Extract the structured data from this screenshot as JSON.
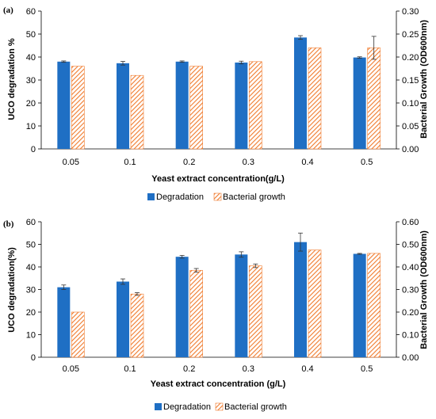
{
  "chart_data": [
    {
      "type": "bar",
      "panel_label": "(a)",
      "categories": [
        "0.05",
        "0.1",
        "0.2",
        "0.3",
        "0.4",
        "0.5"
      ],
      "xlabel": "Yeast extract concentration(g/L)",
      "ylabel": "UCO degradation %",
      "y2label": "Bacterial Growth (OD600nm)",
      "ylim": [
        0,
        60
      ],
      "yticks": [
        "0",
        "10",
        "20",
        "30",
        "40",
        "50",
        "60"
      ],
      "y2lim": [
        0,
        0.3
      ],
      "y2ticks": [
        "0.00",
        "0.05",
        "0.10",
        "0.15",
        "0.20",
        "0.25",
        "0.30"
      ],
      "grid": false,
      "legend_position": "bottom",
      "series": [
        {
          "name": "Degradation",
          "axis": "left",
          "color": "#1f6fc4",
          "values": [
            38,
            37.3,
            38,
            37.6,
            48.5,
            39.8
          ],
          "errors": [
            0.3,
            0.8,
            0.3,
            0.6,
            0.8,
            0.3
          ]
        },
        {
          "name": "Bacterial growth",
          "axis": "right",
          "color": "#f07b2d",
          "pattern": "hatched",
          "values": [
            0.18,
            0.16,
            0.18,
            0.19,
            0.22,
            0.22
          ],
          "errors": [
            0,
            0,
            0,
            0,
            0,
            0.025
          ]
        }
      ]
    },
    {
      "type": "bar",
      "panel_label": "(b)",
      "categories": [
        "0.05",
        "0.1",
        "0.2",
        "0.3",
        "0.4",
        "0.5"
      ],
      "xlabel": "Yeast extract concentration (g/L)",
      "ylabel": "UCO degradation(%)",
      "y2label": "Bacterial Growth (OD600nm)",
      "ylim": [
        0,
        60
      ],
      "yticks": [
        "0",
        "10",
        "20",
        "30",
        "40",
        "50",
        "60"
      ],
      "y2lim": [
        0,
        0.6
      ],
      "y2ticks": [
        "0.00",
        "0.10",
        "0.20",
        "0.30",
        "0.40",
        "0.50",
        "0.60"
      ],
      "grid": false,
      "legend_position": "bottom",
      "series": [
        {
          "name": "Degradation",
          "axis": "left",
          "color": "#1f6fc4",
          "values": [
            31,
            33.5,
            44.5,
            45.5,
            51,
            45.8
          ],
          "errors": [
            1,
            1.2,
            0.6,
            1.2,
            4,
            0.2
          ]
        },
        {
          "name": "Bacterial growth",
          "axis": "right",
          "color": "#f07b2d",
          "pattern": "hatched",
          "values": [
            0.2,
            0.28,
            0.385,
            0.405,
            0.475,
            0.46
          ],
          "errors": [
            0,
            0.006,
            0.008,
            0.008,
            0,
            0
          ]
        }
      ]
    }
  ]
}
